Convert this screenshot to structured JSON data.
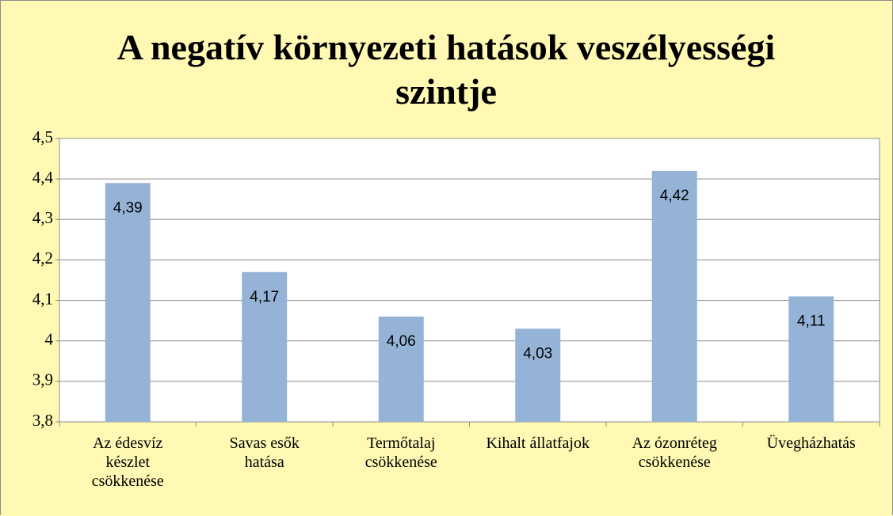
{
  "chart_data": {
    "type": "bar",
    "title": "A negatív környezeti hatások veszélyességi szintje",
    "categories": [
      "Az édesvíz készlet csökkenése",
      "Savas esők hatása",
      "Termőtalaj csökkenése",
      "Kihalt állatfajok",
      "Az ózonréteg csökkenése",
      "Üvegházhatás"
    ],
    "values": [
      4.39,
      4.17,
      4.06,
      4.03,
      4.42,
      4.11
    ],
    "value_labels": [
      "4,39",
      "4,17",
      "4,06",
      "4,03",
      "4,42",
      "4,11"
    ],
    "color": "#95b3d7",
    "ylim": [
      3.8,
      4.5
    ],
    "yticks": [
      {
        "value": 3.8,
        "label": "3,8"
      },
      {
        "value": 3.9,
        "label": "3,9"
      },
      4,
      {
        "value": 4.1,
        "label": "4,1"
      },
      {
        "value": 4.2,
        "label": "4,2"
      },
      {
        "value": 4.3,
        "label": "4,3"
      },
      {
        "value": 4.4,
        "label": "4,4"
      },
      {
        "value": 4.5,
        "label": "4,5"
      }
    ],
    "grid": true
  }
}
